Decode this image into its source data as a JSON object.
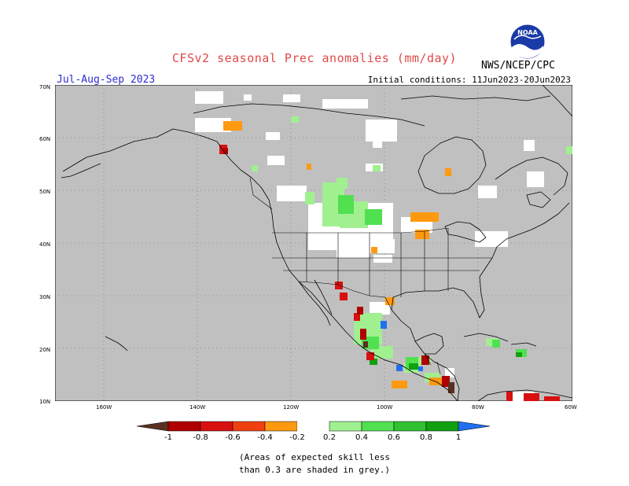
{
  "title": "CFSv2 seasonal Prec anomalies (mm/day)",
  "season": "Jul-Aug-Sep 2023",
  "initial_conditions": "Initial conditions: 11Jun2023-20Jun2023",
  "agency": "NWS/NCEP/CPC",
  "logo": {
    "icon": "noaa-logo",
    "text": "NOAA"
  },
  "map": {
    "lat_labels": [
      "70N",
      "60N",
      "50N",
      "40N",
      "30N",
      "20N",
      "10N"
    ],
    "lon_labels": [
      "160W",
      "140W",
      "120W",
      "100W",
      "80W",
      "60W"
    ],
    "background_color": "#c0c0c0",
    "land_outline_color": "#000000"
  },
  "colorbar": {
    "ticks": [
      "-1",
      "-0.8",
      "-0.6",
      "-0.4",
      "-0.2",
      "0.2",
      "0.4",
      "0.6",
      "0.8",
      "1"
    ],
    "colors": [
      "#5a3020",
      "#b00000",
      "#d81010",
      "#f04010",
      "#ff9a10",
      "#ffffff",
      "#a0f090",
      "#50e050",
      "#30c030",
      "#10a010",
      "#2070f0"
    ]
  },
  "footnote_line1": "(Areas of expected skill less",
  "footnote_line2": "than 0.3 are shaded in grey.)"
}
